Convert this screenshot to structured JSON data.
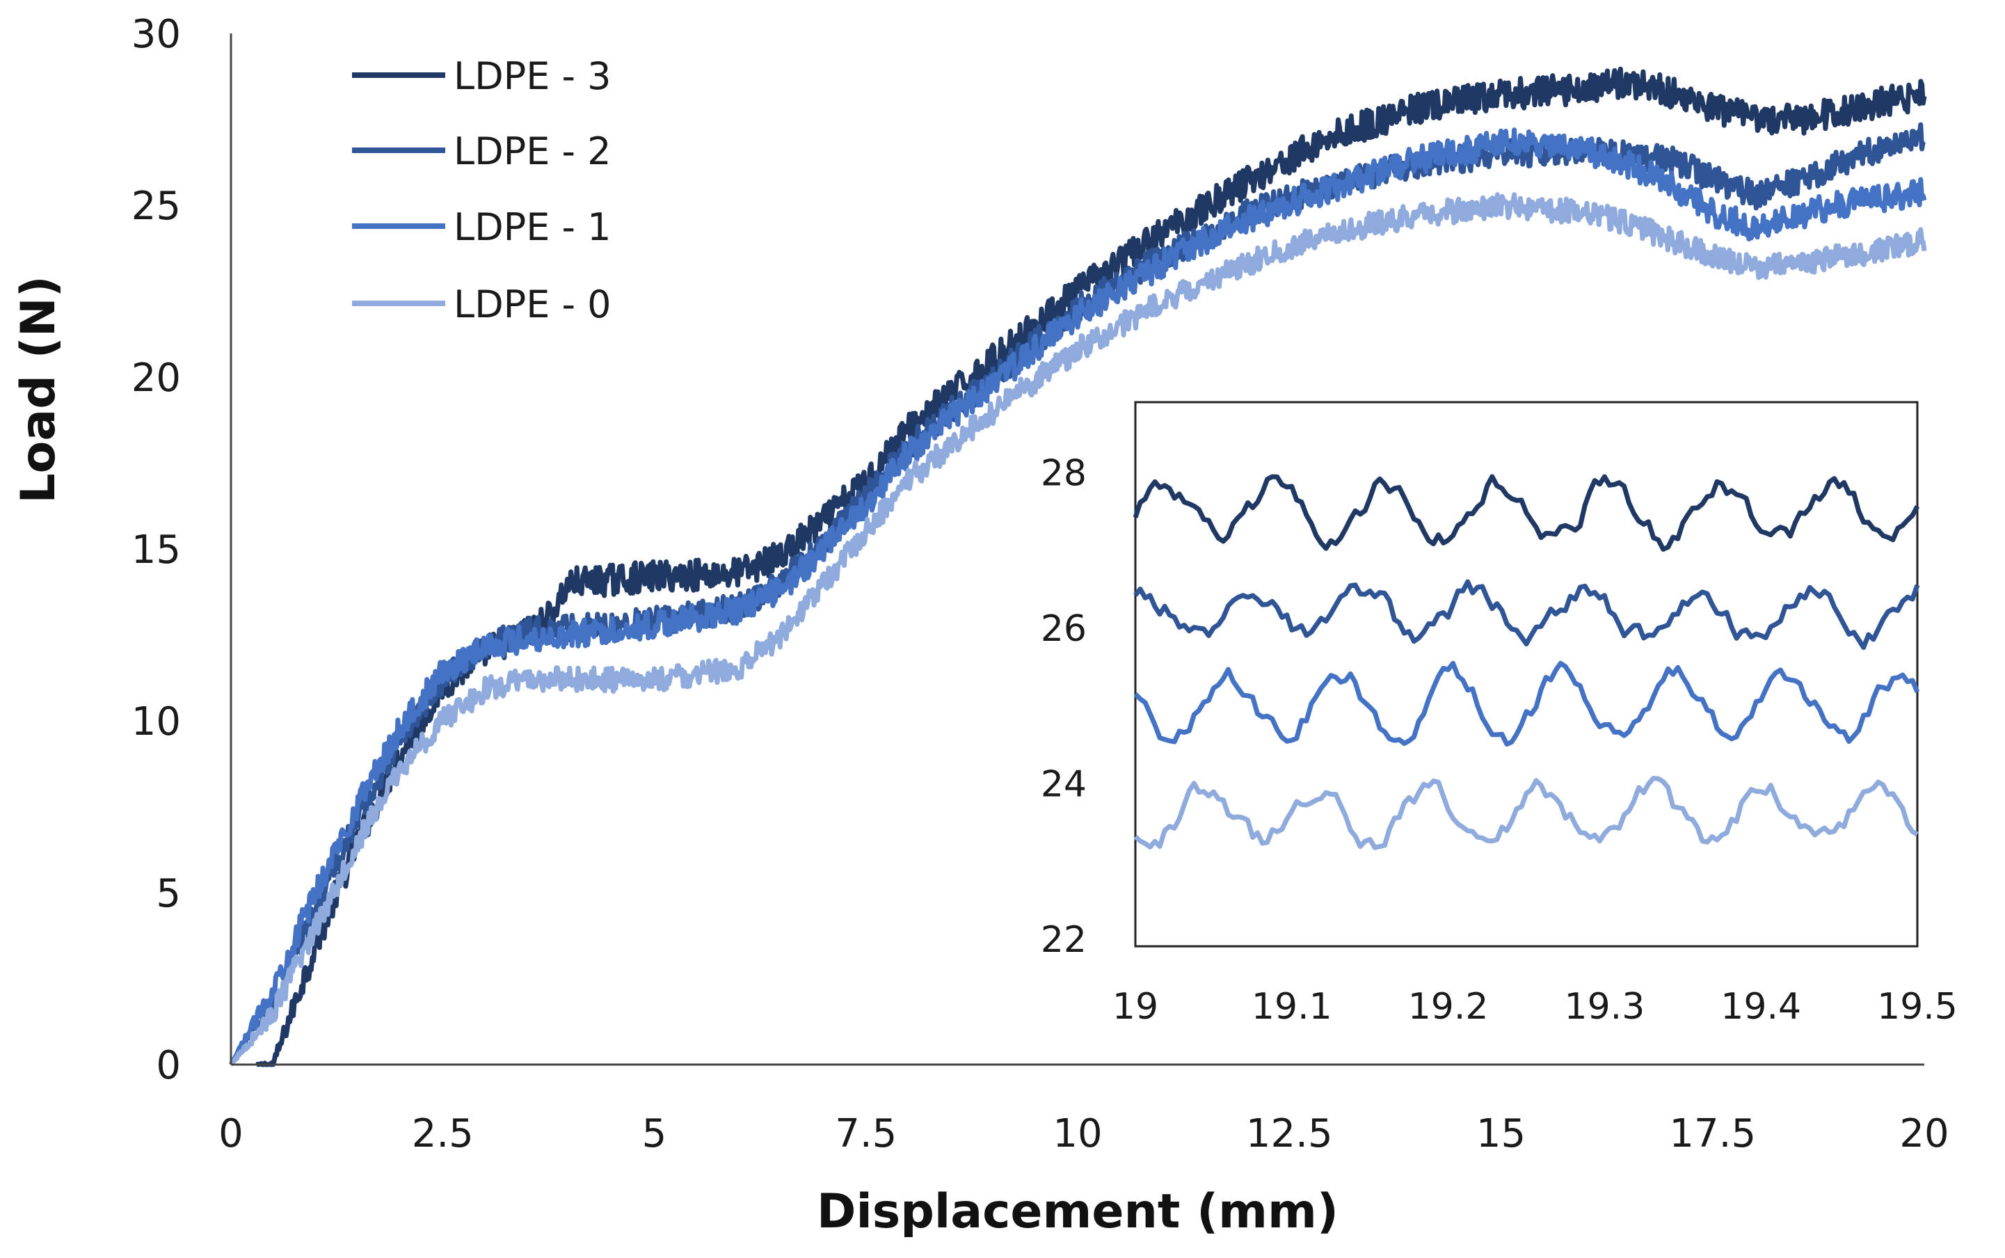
{
  "chart_data": [
    {
      "type": "line",
      "title": "",
      "xlabel": "Displacement (mm)",
      "ylabel": "Load (N)",
      "xlim": [
        0,
        20
      ],
      "ylim": [
        0,
        30
      ],
      "xticks": [
        0,
        2.5,
        5,
        7.5,
        10,
        12.5,
        15,
        17.5,
        20
      ],
      "yticks": [
        0,
        5,
        10,
        15,
        20,
        25,
        30
      ],
      "xtick_labels": [
        "0",
        "2.5",
        "5",
        "7.5",
        "10",
        "12.5",
        "15",
        "17.5",
        "20"
      ],
      "ytick_labels": [
        "0",
        "5",
        "10",
        "15",
        "20",
        "25",
        "30"
      ],
      "grid": false,
      "legend_position": "top-left",
      "series": [
        {
          "name": "LDPE - 3",
          "color": "#1f3864",
          "noise": 0.45,
          "x": [
            0.3,
            0.5,
            1,
            1.5,
            2,
            2.5,
            3,
            3.5,
            3.75,
            4,
            5,
            6,
            6.5,
            7,
            7.5,
            8,
            9,
            10,
            11,
            12,
            13,
            14,
            15,
            16,
            16.5,
            17,
            17.5,
            18,
            18.5,
            19,
            19.5,
            20
          ],
          "y": [
            0,
            0,
            3.5,
            6.5,
            9.0,
            11.0,
            12.0,
            12.6,
            13.0,
            14.0,
            14.2,
            14.3,
            14.8,
            15.8,
            17.0,
            18.5,
            20.5,
            22.5,
            24.2,
            25.7,
            27.0,
            27.8,
            28.2,
            28.4,
            28.6,
            28.3,
            27.8,
            27.5,
            27.5,
            27.7,
            28.0,
            28.2
          ]
        },
        {
          "name": "LDPE - 2",
          "color": "#2f5597",
          "noise": 0.4,
          "x": [
            0,
            0.5,
            1,
            1.5,
            2,
            2.5,
            3,
            3.5,
            4,
            5,
            6,
            6.5,
            7,
            7.5,
            8,
            9,
            10,
            11,
            12,
            13,
            14,
            15,
            16,
            17,
            17.5,
            18,
            18.5,
            19,
            19.5,
            20
          ],
          "y": [
            0,
            1.8,
            4.5,
            7.2,
            9.5,
            11.2,
            12.2,
            12.6,
            12.7,
            12.9,
            13.3,
            14.0,
            15.2,
            16.5,
            18.0,
            20.0,
            22.0,
            23.5,
            24.8,
            25.6,
            26.2,
            26.5,
            26.6,
            26.3,
            25.8,
            25.3,
            25.7,
            26.2,
            26.7,
            27.0
          ]
        },
        {
          "name": "LDPE - 1",
          "color": "#4472c4",
          "noise": 0.4,
          "x": [
            0,
            0.5,
            1,
            1.5,
            2,
            2.5,
            3,
            3.5,
            4,
            5,
            6,
            6.5,
            7,
            7.5,
            8,
            9,
            10,
            11,
            12,
            13,
            14,
            15,
            15.5,
            16,
            16.5,
            17,
            17.5,
            18,
            18.5,
            19,
            19.5,
            20
          ],
          "y": [
            0,
            2.2,
            5.0,
            7.6,
            9.8,
            11.4,
            12.2,
            12.4,
            12.5,
            12.8,
            13.2,
            13.8,
            15.0,
            16.3,
            17.8,
            19.8,
            21.8,
            23.3,
            24.6,
            25.5,
            26.3,
            26.8,
            26.8,
            26.6,
            26.2,
            25.6,
            24.8,
            24.3,
            24.7,
            25.0,
            25.2,
            25.4
          ]
        },
        {
          "name": "LDPE - 0",
          "color": "#8faadc",
          "noise": 0.35,
          "x": [
            0,
            0.5,
            1,
            1.5,
            2,
            2.5,
            3,
            3.5,
            4,
            5,
            6,
            6.5,
            7,
            7.5,
            8,
            9,
            10,
            11,
            12,
            13,
            14,
            15,
            16,
            16.5,
            17,
            17.5,
            18,
            18.5,
            19,
            19.5,
            20
          ],
          "y": [
            0,
            1.5,
            4.0,
            6.5,
            8.6,
            10.0,
            10.9,
            11.2,
            11.2,
            11.2,
            11.5,
            12.5,
            14.0,
            15.5,
            17.0,
            19.0,
            20.8,
            22.2,
            23.3,
            24.2,
            24.7,
            25.0,
            24.8,
            24.5,
            24.0,
            23.5,
            23.2,
            23.3,
            23.5,
            23.7,
            24.0
          ]
        }
      ]
    },
    {
      "type": "line",
      "title": "",
      "xlabel": "",
      "ylabel": "",
      "xlim": [
        19,
        19.5
      ],
      "ylim": [
        22,
        29
      ],
      "xticks": [
        19,
        19.1,
        19.2,
        19.3,
        19.4,
        19.5
      ],
      "yticks": [
        22,
        24,
        26,
        28
      ],
      "xtick_labels": [
        "19",
        "19.1",
        "19.2",
        "19.3",
        "19.4",
        "19.5"
      ],
      "ytick_labels": [
        "22",
        "24",
        "26",
        "28"
      ],
      "grid": false,
      "legend_position": "none",
      "series": [
        {
          "name": "LDPE - 3",
          "color": "#1f3864",
          "base": 27.5,
          "wave": 0.35,
          "noise": 0.25
        },
        {
          "name": "LDPE - 2",
          "color": "#2f5597",
          "base": 26.2,
          "wave": 0.3,
          "noise": 0.25
        },
        {
          "name": "LDPE - 1",
          "color": "#4472c4",
          "base": 25.0,
          "wave": 0.4,
          "noise": 0.25
        },
        {
          "name": "LDPE - 0",
          "color": "#8faadc",
          "base": 23.6,
          "wave": 0.35,
          "noise": 0.25
        }
      ]
    }
  ],
  "legend": {
    "items": [
      {
        "label": "LDPE - 3",
        "color": "#1f3864"
      },
      {
        "label": "LDPE - 2",
        "color": "#2f5597"
      },
      {
        "label": "LDPE - 1",
        "color": "#4472c4"
      },
      {
        "label": "LDPE - 0",
        "color": "#8faadc"
      }
    ]
  }
}
